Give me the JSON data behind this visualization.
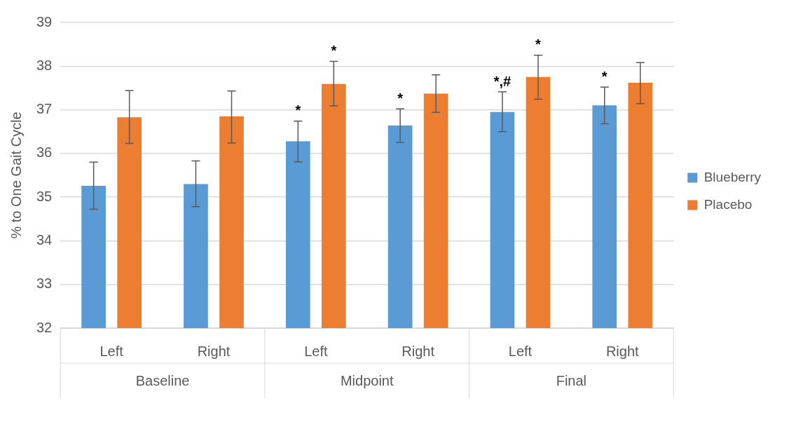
{
  "chart_data": {
    "type": "bar",
    "ylabel": "% to One Gait Cycle",
    "categories": [
      "Left",
      "Right",
      "Left",
      "Right",
      "Left",
      "Right"
    ],
    "series": [
      {
        "name": "Blueberry",
        "color": "#5b9bd5",
        "values": [
          35.26,
          35.3,
          36.28,
          36.64,
          36.95,
          37.1
        ],
        "errors": [
          [
            34.72,
            35.8
          ],
          [
            34.78,
            35.83
          ],
          [
            35.81,
            36.74
          ],
          [
            36.25,
            37.02
          ],
          [
            36.5,
            37.41
          ],
          [
            36.68,
            37.52
          ]
        ],
        "value_labels": [
          null,
          null,
          "*",
          "*",
          "*,#",
          "*"
        ]
      },
      {
        "name": "Placebo",
        "color": "#ed7d31",
        "values": [
          36.83,
          36.85,
          37.59,
          37.37,
          37.75,
          37.62
        ],
        "errors": [
          [
            36.23,
            37.44
          ],
          [
            36.24,
            37.43
          ],
          [
            37.09,
            38.11
          ],
          [
            36.94,
            37.8
          ],
          [
            37.24,
            38.25
          ],
          [
            37.14,
            38.08
          ]
        ],
        "value_labels": [
          null,
          null,
          "*",
          null,
          "*",
          null
        ]
      }
    ],
    "ylim": [
      32,
      39
    ],
    "yticks": [
      32,
      33,
      34,
      35,
      36,
      37,
      38,
      39
    ],
    "grid": "y",
    "legend": "right",
    "annotations": [
      "Baseline",
      "Midpoint",
      "Final"
    ]
  }
}
